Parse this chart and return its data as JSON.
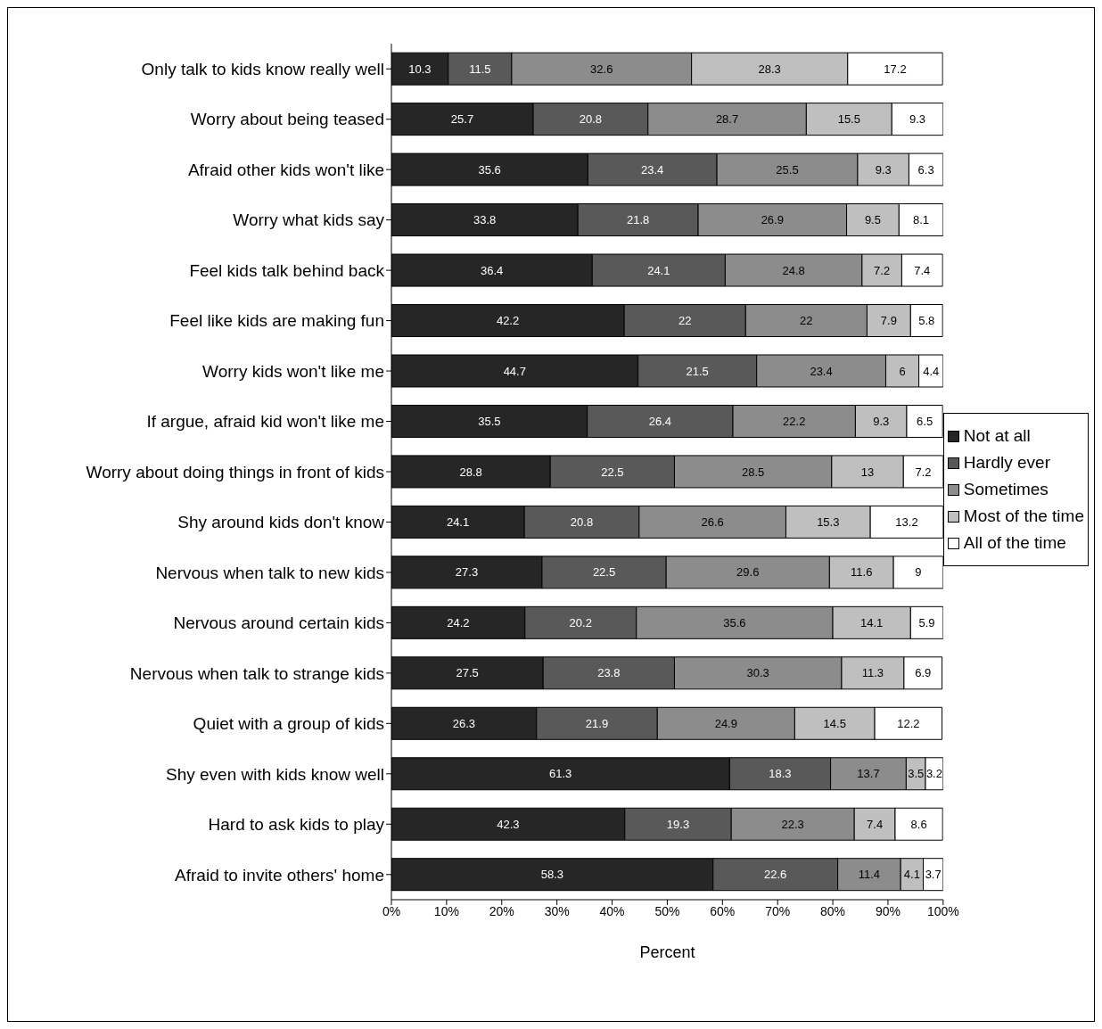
{
  "chart_data": {
    "type": "bar",
    "orientation": "horizontal",
    "stacked": true,
    "xlabel": "Percent",
    "categories": [
      "Only talk to kids know really well",
      "Worry about being teased",
      "Afraid other kids won't like",
      "Worry what kids say",
      "Feel kids talk behind back",
      "Feel like kids are making fun",
      "Worry kids won't like me",
      "If argue, afraid kid won't like me",
      "Worry about doing things in front of kids",
      "Shy around kids don't know",
      "Nervous when talk to new kids",
      "Nervous around certain kids",
      "Nervous when talk to strange kids",
      "Quiet with a group of kids",
      "Shy even with kids know well",
      "Hard to ask kids to play",
      "Afraid to invite others' home"
    ],
    "series": [
      {
        "name": "Not at all",
        "color": "#262626",
        "values": [
          10.3,
          25.7,
          35.6,
          33.8,
          36.4,
          42.2,
          44.7,
          35.5,
          28.8,
          24.1,
          27.3,
          24.2,
          27.5,
          26.3,
          61.3,
          42.3,
          58.3
        ]
      },
      {
        "name": "Hardly ever",
        "color": "#595959",
        "values": [
          11.5,
          20.8,
          23.4,
          21.8,
          24.1,
          22,
          21.5,
          26.4,
          22.5,
          20.8,
          22.5,
          20.2,
          23.8,
          21.9,
          18.3,
          19.3,
          22.6
        ]
      },
      {
        "name": "Sometimes",
        "color": "#8c8c8c",
        "values": [
          32.6,
          28.7,
          25.5,
          26.9,
          24.8,
          22,
          23.4,
          22.2,
          28.5,
          26.6,
          29.6,
          35.6,
          30.3,
          24.9,
          13.7,
          22.3,
          11.4
        ]
      },
      {
        "name": "Most of the time",
        "color": "#bfbfbf",
        "values": [
          28.3,
          15.5,
          9.3,
          9.5,
          7.2,
          7.9,
          6,
          9.3,
          13,
          15.3,
          11.6,
          14.1,
          11.3,
          14.5,
          3.5,
          7.4,
          4.1
        ]
      },
      {
        "name": "All of the time",
        "color": "#ffffff",
        "values": [
          17.2,
          9.3,
          6.3,
          8.1,
          7.4,
          5.8,
          4.4,
          6.5,
          7.2,
          13.2,
          9,
          5.9,
          6.9,
          12.2,
          3.2,
          8.6,
          3.7
        ]
      }
    ],
    "xlim": [
      0,
      100
    ],
    "xticks": [
      {
        "value": 0,
        "label": "0%"
      },
      {
        "value": 10,
        "label": "10%"
      },
      {
        "value": 20,
        "label": "20%"
      },
      {
        "value": 30,
        "label": "30%"
      },
      {
        "value": 40,
        "label": "40%"
      },
      {
        "value": 50,
        "label": "50%"
      },
      {
        "value": 60,
        "label": "60%"
      },
      {
        "value": 70,
        "label": "70%"
      },
      {
        "value": 80,
        "label": "80%"
      },
      {
        "value": 90,
        "label": "90%"
      },
      {
        "value": 100,
        "label": "100%"
      }
    ],
    "data_labels": true,
    "legend": "right",
    "grid": false
  }
}
